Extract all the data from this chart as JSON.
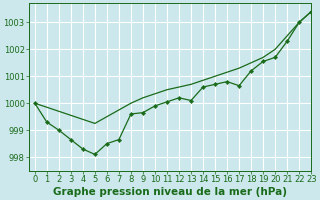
{
  "background_color": "#cce8ec",
  "grid_color": "#ffffff",
  "line_color": "#1a6b1a",
  "marker_color": "#1a6b1a",
  "xlabel": "Graphe pression niveau de la mer (hPa)",
  "ylim": [
    997.5,
    1003.7
  ],
  "xlim": [
    -0.5,
    23
  ],
  "yticks": [
    998,
    999,
    1000,
    1001,
    1002,
    1003
  ],
  "xticks": [
    0,
    1,
    2,
    3,
    4,
    5,
    6,
    7,
    8,
    9,
    10,
    11,
    12,
    13,
    14,
    15,
    16,
    17,
    18,
    19,
    20,
    21,
    22,
    23
  ],
  "series_smooth": [
    1000.0,
    999.85,
    999.7,
    999.55,
    999.4,
    999.25,
    999.5,
    999.75,
    1000.0,
    1000.2,
    1000.35,
    1000.5,
    1000.6,
    1000.7,
    1000.85,
    1001.0,
    1001.15,
    1001.3,
    1001.5,
    1001.7,
    1002.0,
    1002.5,
    1003.0,
    1003.4
  ],
  "series_markers": [
    1000.0,
    999.3,
    999.0,
    998.65,
    998.3,
    998.1,
    998.5,
    998.65,
    999.6,
    999.65,
    999.9,
    1000.05,
    1000.2,
    1000.1,
    1000.6,
    1000.7,
    1000.8,
    1000.65,
    1001.2,
    1001.55,
    1001.7,
    1002.3,
    1003.0,
    1003.4
  ],
  "title_fontsize": 7.5,
  "tick_fontsize": 6
}
